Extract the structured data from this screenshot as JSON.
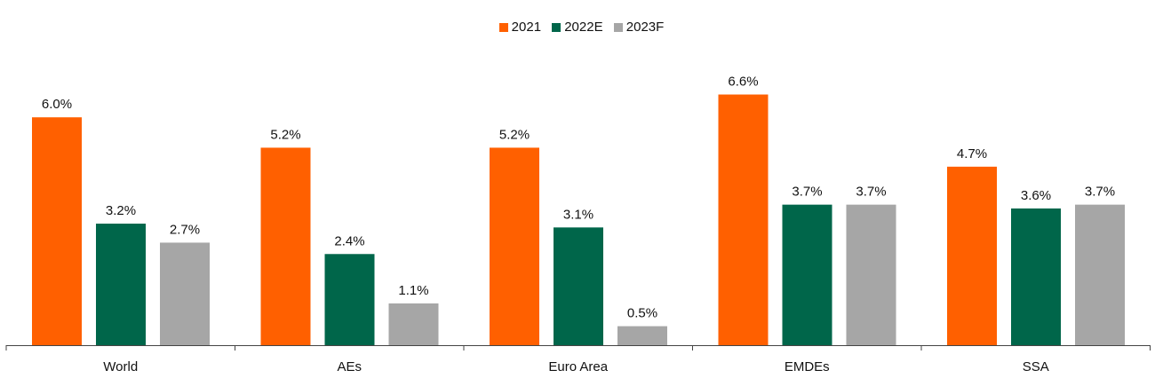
{
  "chart_data": {
    "type": "bar",
    "categories": [
      "World",
      "AEs",
      "Euro Area",
      "EMDEs",
      "SSA"
    ],
    "series": [
      {
        "name": "2021",
        "color": "#FF6000",
        "values": [
          6.0,
          5.2,
          5.2,
          6.6,
          4.7
        ],
        "labels": [
          "6.0%",
          "5.2%",
          "5.2%",
          "6.6%",
          "4.7%"
        ]
      },
      {
        "name": "2022E",
        "color": "#00664A",
        "values": [
          3.2,
          2.4,
          3.1,
          3.7,
          3.6
        ],
        "labels": [
          "3.2%",
          "2.4%",
          "3.1%",
          "3.7%",
          "3.6%"
        ]
      },
      {
        "name": "2023F",
        "color": "#A6A6A6",
        "values": [
          2.7,
          1.1,
          0.5,
          3.7,
          3.7
        ],
        "labels": [
          "2.7%",
          "1.1%",
          "0.5%",
          "3.7%",
          "3.7%"
        ]
      }
    ],
    "ylim": [
      0,
      7.0
    ],
    "legend_position": "top-center",
    "grid": false
  }
}
